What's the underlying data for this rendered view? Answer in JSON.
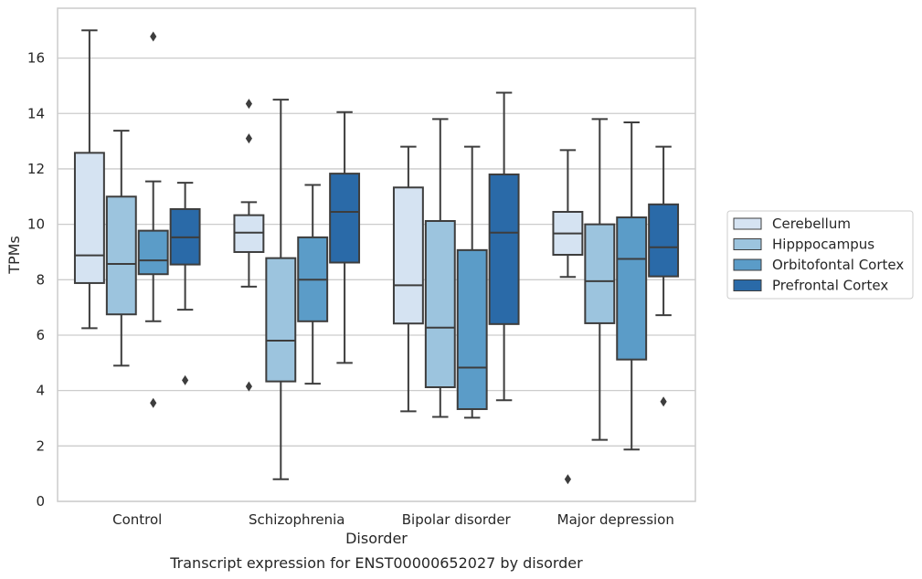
{
  "chart_data": {
    "type": "box",
    "xlabel": "Disorder",
    "ylabel": "TPMs",
    "caption": "Transcript expression for ENST00000652027 by disorder",
    "ylim": [
      0,
      17.8
    ],
    "yticks": [
      0,
      2,
      4,
      6,
      8,
      10,
      12,
      14,
      16
    ],
    "grid": "horizontal",
    "legend_position": "right",
    "categories": [
      "Control",
      "Schizophrenia",
      "Bipolar disorder",
      "Major depression"
    ],
    "series": [
      {
        "name": "Cerebellum",
        "color": "#d5e3f2",
        "boxes": [
          {
            "whisker_low": 6.25,
            "q1": 7.88,
            "median": 8.88,
            "q3": 12.58,
            "whisker_high": 17.0,
            "outliers": []
          },
          {
            "whisker_low": 7.75,
            "q1": 9.0,
            "median": 9.7,
            "q3": 10.33,
            "whisker_high": 10.8,
            "outliers": [
              14.35,
              13.1,
              4.15
            ]
          },
          {
            "whisker_low": 3.25,
            "q1": 6.42,
            "median": 7.8,
            "q3": 11.33,
            "whisker_high": 12.8,
            "outliers": []
          },
          {
            "whisker_low": 8.1,
            "q1": 8.9,
            "median": 9.67,
            "q3": 10.45,
            "whisker_high": 12.68,
            "outliers": [
              0.8
            ]
          }
        ]
      },
      {
        "name": "Hipppocampus",
        "color": "#9cc4de",
        "boxes": [
          {
            "whisker_low": 4.9,
            "q1": 6.75,
            "median": 8.57,
            "q3": 11.0,
            "whisker_high": 13.38,
            "outliers": []
          },
          {
            "whisker_low": 0.8,
            "q1": 4.33,
            "median": 5.8,
            "q3": 8.78,
            "whisker_high": 14.5,
            "outliers": []
          },
          {
            "whisker_low": 3.05,
            "q1": 4.12,
            "median": 6.27,
            "q3": 10.12,
            "whisker_high": 13.8,
            "outliers": []
          },
          {
            "whisker_low": 2.22,
            "q1": 6.43,
            "median": 7.95,
            "q3": 10.0,
            "whisker_high": 13.8,
            "outliers": []
          }
        ]
      },
      {
        "name": "Orbitofontal Cortex",
        "color": "#5b9cc8",
        "boxes": [
          {
            "whisker_low": 6.5,
            "q1": 8.2,
            "median": 8.7,
            "q3": 9.77,
            "whisker_high": 11.55,
            "outliers": [
              16.78,
              3.55
            ]
          },
          {
            "whisker_low": 4.25,
            "q1": 6.5,
            "median": 8.0,
            "q3": 9.53,
            "whisker_high": 11.42,
            "outliers": []
          },
          {
            "whisker_low": 3.02,
            "q1": 3.33,
            "median": 4.83,
            "q3": 9.07,
            "whisker_high": 12.8,
            "outliers": []
          },
          {
            "whisker_low": 1.87,
            "q1": 5.12,
            "median": 8.75,
            "q3": 10.25,
            "whisker_high": 13.68,
            "outliers": []
          }
        ]
      },
      {
        "name": "Prefrontal Cortex",
        "color": "#2a6aa8",
        "boxes": [
          {
            "whisker_low": 6.92,
            "q1": 8.55,
            "median": 9.53,
            "q3": 10.55,
            "whisker_high": 11.5,
            "outliers": [
              4.37
            ]
          },
          {
            "whisker_low": 5.0,
            "q1": 8.62,
            "median": 10.45,
            "q3": 11.83,
            "whisker_high": 14.05,
            "outliers": []
          },
          {
            "whisker_low": 3.65,
            "q1": 6.4,
            "median": 9.7,
            "q3": 11.8,
            "whisker_high": 14.75,
            "outliers": []
          },
          {
            "whisker_low": 6.72,
            "q1": 8.12,
            "median": 9.17,
            "q3": 10.72,
            "whisker_high": 12.8,
            "outliers": [
              3.6
            ]
          }
        ]
      }
    ]
  }
}
